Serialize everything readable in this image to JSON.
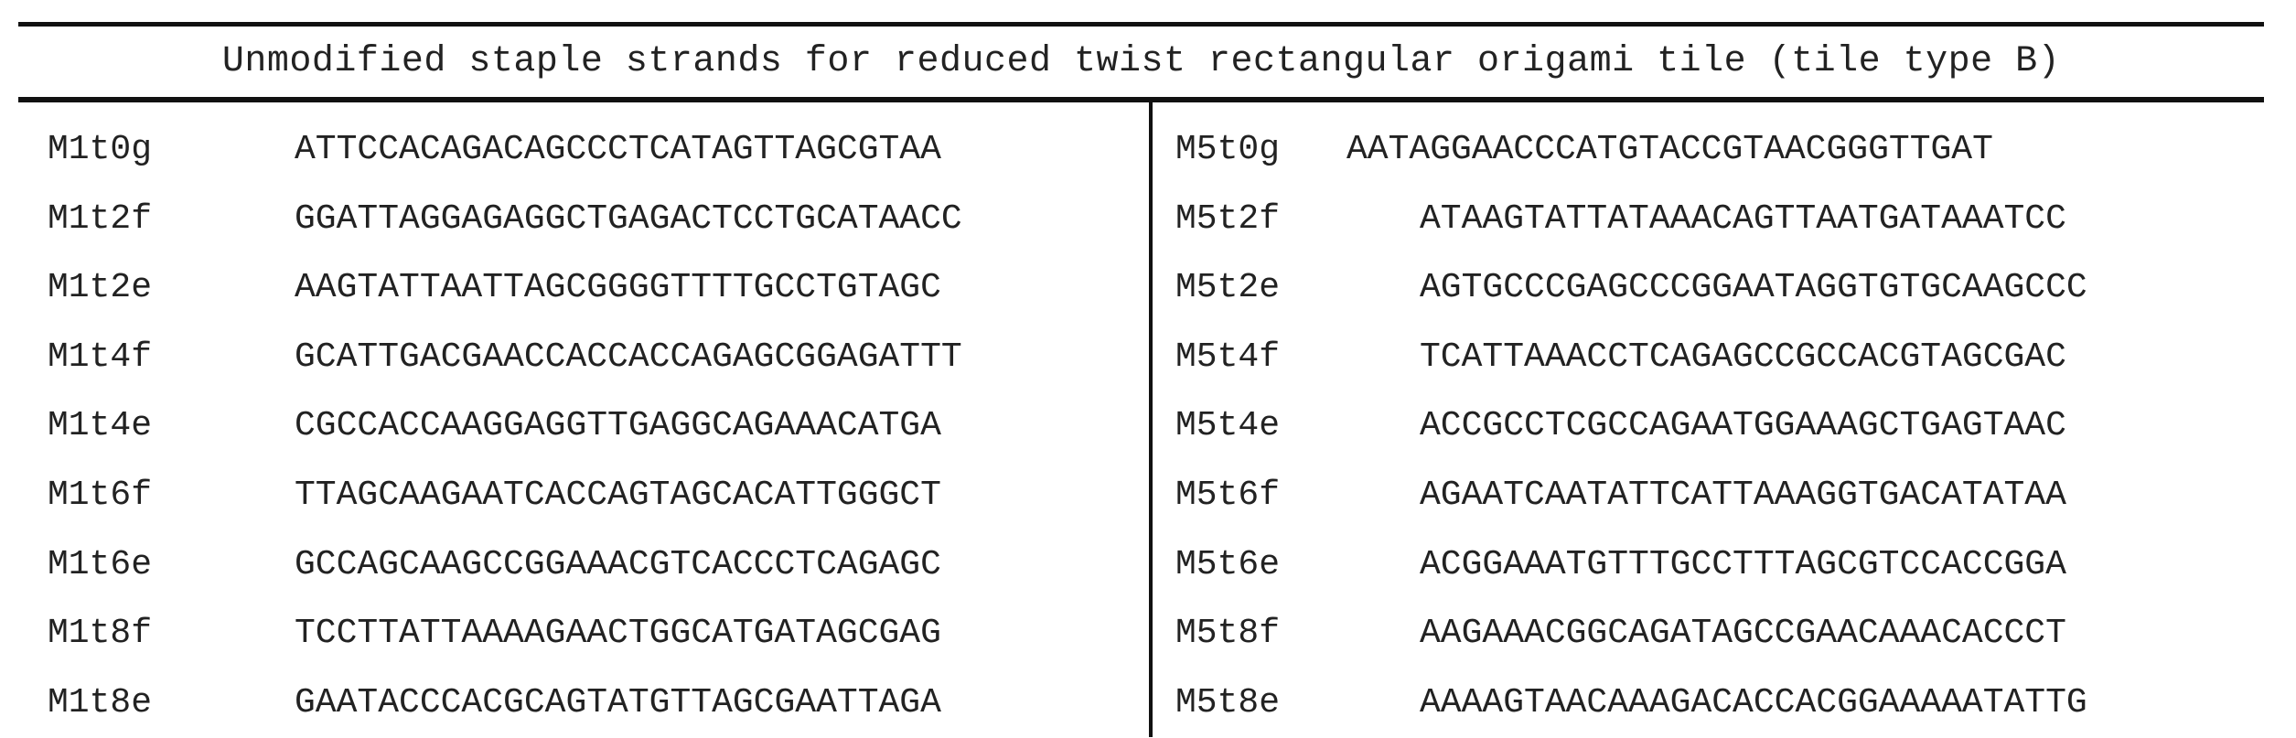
{
  "table": {
    "title": "Unmodified staple strands for reduced twist rectangular origami tile (tile type B)",
    "left_rows": [
      {
        "name": "M1t0g",
        "seq": "ATTCCACAGACAGCCCTCATAGTTAGCGTAA"
      },
      {
        "name": "M1t2f",
        "seq": "GGATTAGGAGAGGCTGAGACTCCTGCATAACC"
      },
      {
        "name": "M1t2e",
        "seq": "AAGTATTAATTAGCGGGGTTTTGCCTGTAGC"
      },
      {
        "name": "M1t4f",
        "seq": "GCATTGACGAACCACCACCAGAGCGGAGATTT"
      },
      {
        "name": "M1t4e",
        "seq": "CGCCACCAAGGAGGTTGAGGCAGAAACATGA"
      },
      {
        "name": "M1t6f",
        "seq": "TTAGCAAGAATCACCAGTAGCACATTGGGCT"
      },
      {
        "name": "M1t6e",
        "seq": "GCCAGCAAGCCGGAAACGTCACCCTCAGAGC"
      },
      {
        "name": "M1t8f",
        "seq": "TCCTTATTAAAAGAACTGGCATGATAGCGAG"
      },
      {
        "name": "M1t8e",
        "seq": "GAATACCCACGCAGTATGTTAGCGAATTAGA"
      }
    ],
    "right_rows": [
      {
        "name": "M5t0g",
        "seq": "AATAGGAACCCATGTACCGTAACGGGTTGAT"
      },
      {
        "name": "M5t2f",
        "seq": "ATAAGTATTATAAACAGTTAATGATAAATCC"
      },
      {
        "name": "M5t2e",
        "seq": "AGTGCCCGAGCCCGGAATAGGTGTGCAAGCCC"
      },
      {
        "name": "M5t4f",
        "seq": "TCATTAAACCTCAGAGCCGCCACGTAGCGAC"
      },
      {
        "name": "M5t4e",
        "seq": "ACCGCCTCGCCAGAATGGAAAGCTGAGTAAC"
      },
      {
        "name": "M5t6f",
        "seq": "AGAATCAATATTCATTAAAGGTGACATATAA"
      },
      {
        "name": "M5t6e",
        "seq": "ACGGAAATGTTTGCCTTTAGCGTCCACCGGA"
      },
      {
        "name": "M5t8f",
        "seq": "AAGAAACGGCAGATAGCCGAACAAACACCCT"
      },
      {
        "name": "M5t8e",
        "seq": "AAAAGTAACAAAGACACCACGGAAAAATATTG"
      }
    ]
  }
}
